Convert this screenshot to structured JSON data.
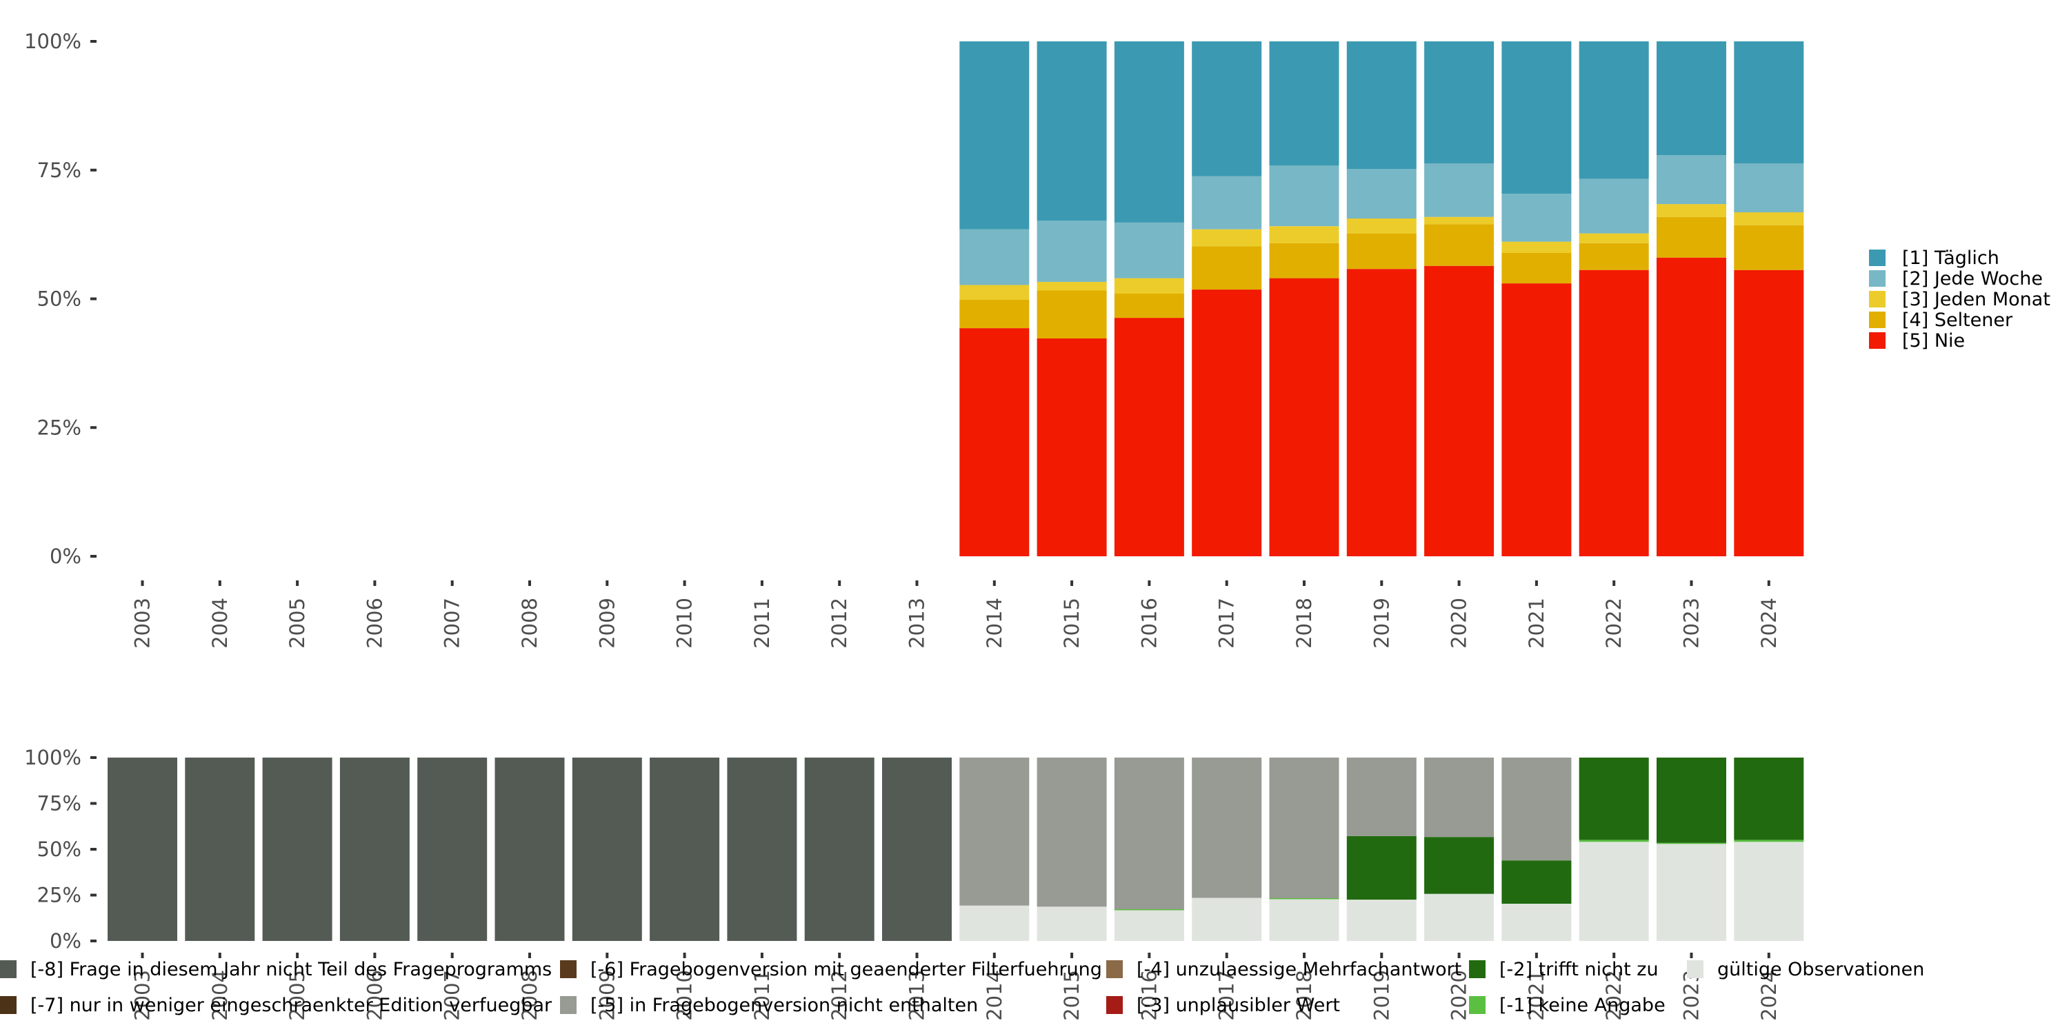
{
  "chart_data": [
    {
      "type": "bar",
      "stacked": true,
      "title": "",
      "xlabel": "",
      "ylabel": "",
      "ylim": [
        0,
        1
      ],
      "y_ticks": [
        "0%",
        "25%",
        "50%",
        "75%",
        "100%"
      ],
      "categories": [
        "2003",
        "2004",
        "2005",
        "2006",
        "2007",
        "2008",
        "2009",
        "2010",
        "2011",
        "2012",
        "2013",
        "2014",
        "2015",
        "2016",
        "2017",
        "2018",
        "2019",
        "2020",
        "2021",
        "2022",
        "2023",
        "2024"
      ],
      "legend_position": "right",
      "series": [
        {
          "name": "[5] Nie",
          "color": "#f21a00",
          "values": [
            null,
            null,
            null,
            null,
            null,
            null,
            null,
            null,
            null,
            null,
            null,
            0.443,
            0.423,
            0.463,
            0.518,
            0.54,
            0.558,
            0.564,
            0.53,
            0.556,
            0.58,
            0.556
          ]
        },
        {
          "name": "[4] Seltener",
          "color": "#e1af00",
          "values": [
            null,
            null,
            null,
            null,
            null,
            null,
            null,
            null,
            null,
            null,
            null,
            0.055,
            0.093,
            0.047,
            0.084,
            0.068,
            0.069,
            0.081,
            0.059,
            0.052,
            0.079,
            0.087
          ]
        },
        {
          "name": "[3] Jeden Monat",
          "color": "#ebcc2a",
          "values": [
            null,
            null,
            null,
            null,
            null,
            null,
            null,
            null,
            null,
            null,
            null,
            0.029,
            0.017,
            0.03,
            0.033,
            0.033,
            0.029,
            0.014,
            0.022,
            0.019,
            0.025,
            0.025
          ]
        },
        {
          "name": "[2] Jede Woche",
          "color": "#78b7c5",
          "values": [
            null,
            null,
            null,
            null,
            null,
            null,
            null,
            null,
            null,
            null,
            null,
            0.108,
            0.119,
            0.108,
            0.103,
            0.118,
            0.096,
            0.104,
            0.093,
            0.106,
            0.095,
            0.095
          ]
        },
        {
          "name": "[1] Täglich",
          "color": "#3b9ab2",
          "values": [
            null,
            null,
            null,
            null,
            null,
            null,
            null,
            null,
            null,
            null,
            null,
            0.365,
            0.348,
            0.352,
            0.262,
            0.241,
            0.248,
            0.237,
            0.296,
            0.267,
            0.221,
            0.237
          ]
        }
      ],
      "legend_order": [
        "[1] Täglich",
        "[2] Jede Woche",
        "[3] Jeden Monat",
        "[4] Seltener",
        "[5] Nie"
      ]
    },
    {
      "type": "bar",
      "stacked": true,
      "title": "",
      "xlabel": "",
      "ylabel": "",
      "ylim": [
        0,
        1
      ],
      "y_ticks": [
        "0%",
        "25%",
        "50%",
        "75%",
        "100%"
      ],
      "categories": [
        "2003",
        "2004",
        "2005",
        "2006",
        "2007",
        "2008",
        "2009",
        "2010",
        "2011",
        "2012",
        "2013",
        "2014",
        "2015",
        "2016",
        "2017",
        "2018",
        "2019",
        "2020",
        "2021",
        "2022",
        "2023",
        "2024"
      ],
      "legend_position": "bottom",
      "series": [
        {
          "name": "gültige Observationen",
          "color": "#e0e4de",
          "values": [
            0,
            0,
            0,
            0,
            0,
            0,
            0,
            0,
            0,
            0,
            0,
            0.193,
            0.187,
            0.169,
            0.235,
            0.23,
            0.225,
            0.257,
            0.203,
            0.54,
            0.529,
            0.54
          ]
        },
        {
          "name": "[-1] keine Angabe",
          "color": "#5bbf42",
          "values": [
            0,
            0,
            0,
            0,
            0,
            0,
            0,
            0,
            0,
            0,
            0,
            0,
            0,
            0.004,
            0,
            0.003,
            0,
            0,
            0,
            0.011,
            0.006,
            0.011
          ]
        },
        {
          "name": "[-2] trifft nicht zu",
          "color": "#216a0f",
          "values": [
            0,
            0,
            0,
            0,
            0,
            0,
            0,
            0,
            0,
            0,
            0,
            0,
            0,
            0,
            0,
            0,
            0.347,
            0.31,
            0.236,
            0.449,
            0.465,
            0.449
          ]
        },
        {
          "name": "[-3] unplausibler Wert",
          "color": "#a51b15",
          "values": [
            0,
            0,
            0,
            0,
            0,
            0,
            0,
            0,
            0,
            0,
            0,
            0,
            0,
            0,
            0,
            0,
            0,
            0,
            0,
            0,
            0,
            0
          ]
        },
        {
          "name": "[-4] unzulaessige Mehrfachantwort",
          "color": "#8b6a47",
          "values": [
            0,
            0,
            0,
            0,
            0,
            0,
            0,
            0,
            0,
            0,
            0,
            0,
            0,
            0,
            0,
            0,
            0,
            0,
            0,
            0,
            0,
            0
          ]
        },
        {
          "name": "[-5] in Fragebogenversion nicht enthalten",
          "color": "#979b93",
          "values": [
            0,
            0,
            0,
            0,
            0,
            0,
            0,
            0,
            0,
            0,
            0,
            0.807,
            0.813,
            0.827,
            0.765,
            0.767,
            0.428,
            0.433,
            0.561,
            0,
            0,
            0
          ]
        },
        {
          "name": "[-6] Fragebogenversion mit geaenderter Filterfuehrung",
          "color": "#5a3a1c",
          "values": [
            0,
            0,
            0,
            0,
            0,
            0,
            0,
            0,
            0,
            0,
            0,
            0,
            0,
            0,
            0,
            0,
            0,
            0,
            0,
            0,
            0,
            0
          ]
        },
        {
          "name": "[-7] nur in weniger eingeschraenkter Edition verfuegbar",
          "color": "#4c3317",
          "values": [
            0,
            0,
            0,
            0,
            0,
            0,
            0,
            0,
            0,
            0,
            0,
            0,
            0,
            0,
            0,
            0,
            0,
            0,
            0,
            0,
            0,
            0
          ]
        },
        {
          "name": "[-8] Frage in diesem Jahr nicht Teil des Frageprogramms",
          "color": "#545b55",
          "values": [
            1,
            1,
            1,
            1,
            1,
            1,
            1,
            1,
            1,
            1,
            1,
            0,
            0,
            0,
            0,
            0,
            0,
            0,
            0,
            0,
            0,
            0
          ]
        }
      ],
      "legend_rows": [
        [
          "[-8] Frage in diesem Jahr nicht Teil des Frageprogramms",
          "[-6] Fragebogenversion mit geaenderter Filterfuehrung",
          "[-4] unzulaessige Mehrfachantwort",
          "[-2] trifft nicht zu",
          "gültige Observationen"
        ],
        [
          "[-7] nur in weniger eingeschraenkter Edition verfuegbar",
          "[-5] in Fragebogenversion nicht enthalten",
          "[-3] unplausibler Wert",
          "[-1] keine Angabe"
        ]
      ]
    }
  ]
}
